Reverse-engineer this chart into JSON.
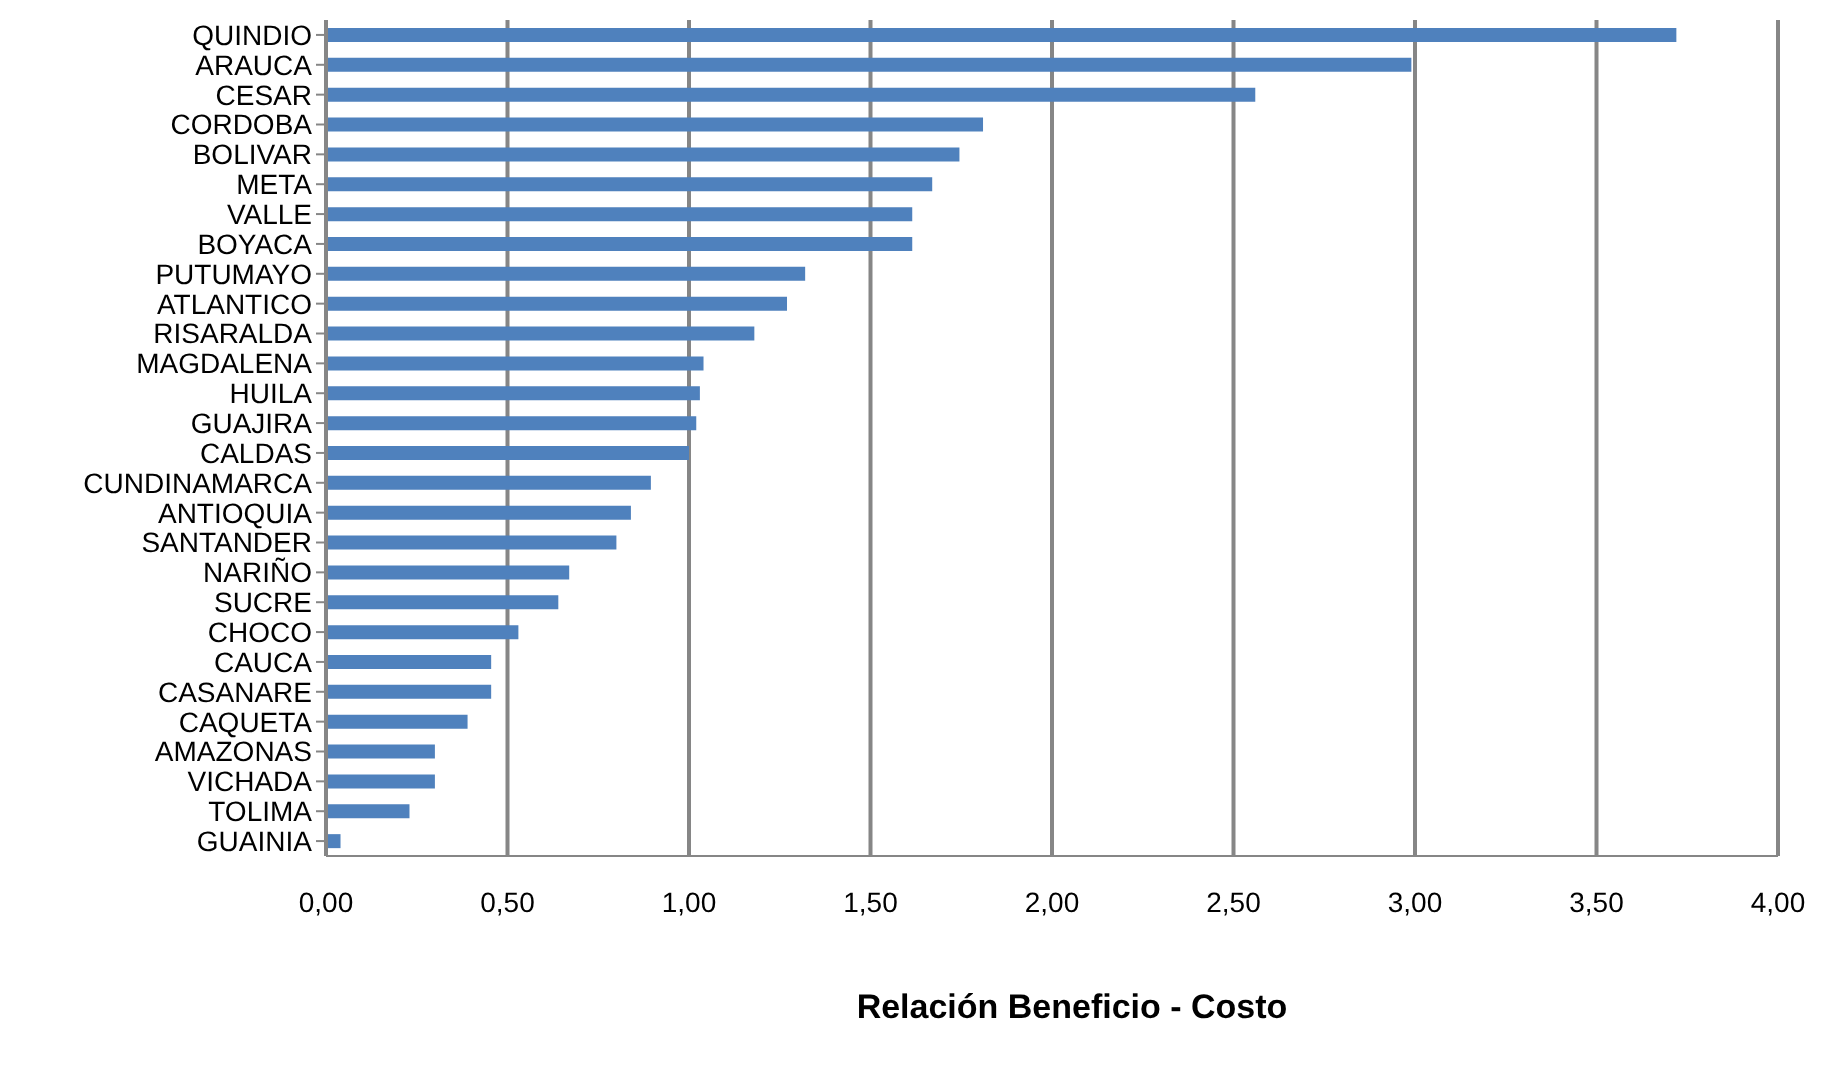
{
  "chart_data": {
    "type": "bar",
    "orientation": "horizontal",
    "xlabel": "Relación Beneficio - Costo",
    "categories": [
      "QUINDIO",
      "ARAUCA",
      "CESAR",
      "CORDOBA",
      "BOLIVAR",
      "META",
      "VALLE",
      "BOYACA",
      "PUTUMAYO",
      "ATLANTICO",
      "RISARALDA",
      "MAGDALENA",
      "HUILA",
      "GUAJIRA",
      "CALDAS",
      "CUNDINAMARCA",
      "ANTIOQUIA",
      "SANTANDER",
      "NARIÑO",
      "SUCRE",
      "CHOCO",
      "CAUCA",
      "CASANARE",
      "CAQUETA",
      "AMAZONAS",
      "VICHADA",
      "TOLIMA",
      "GUAINIA"
    ],
    "values": [
      3.72,
      2.99,
      2.56,
      1.81,
      1.745,
      1.67,
      1.615,
      1.615,
      1.32,
      1.27,
      1.18,
      1.04,
      1.03,
      1.02,
      1.0,
      0.895,
      0.84,
      0.8,
      0.67,
      0.64,
      0.53,
      0.455,
      0.455,
      0.39,
      0.3,
      0.3,
      0.23,
      0.04
    ],
    "color": "#4f81bd",
    "xlim": [
      0,
      4
    ],
    "xticks": [
      {
        "value": 0,
        "label": "0,00"
      },
      {
        "value": 0.5,
        "label": "0,50"
      },
      {
        "value": 1,
        "label": "1,00"
      },
      {
        "value": 1.5,
        "label": "1,50"
      },
      {
        "value": 2,
        "label": "2,00"
      },
      {
        "value": 2.5,
        "label": "2,50"
      },
      {
        "value": 3,
        "label": "3,00"
      },
      {
        "value": 3.5,
        "label": "3,50"
      },
      {
        "value": 4,
        "label": "4,00"
      }
    ],
    "grid": "x",
    "legend": false
  }
}
